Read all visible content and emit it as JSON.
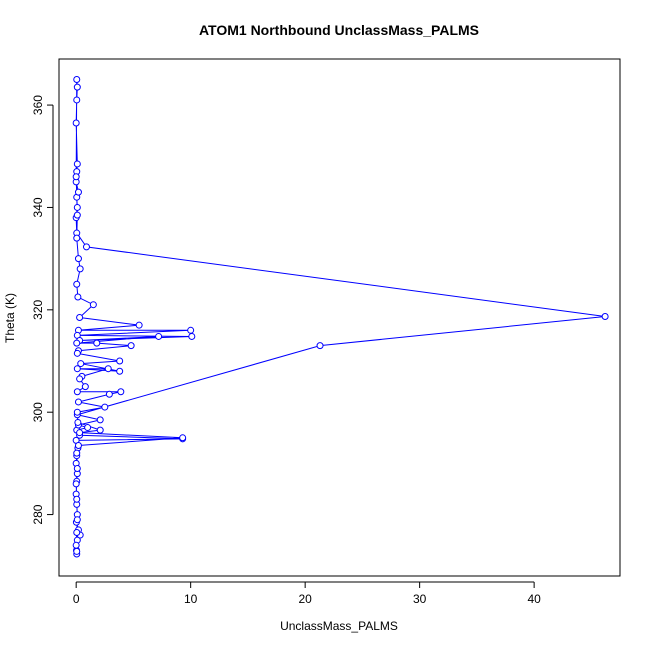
{
  "chart_data": {
    "type": "line",
    "title": "ATOM1 Northbound UnclassMass_PALMS",
    "xlabel": "UnclassMass_PALMS",
    "ylabel": "Theta (K)",
    "xlim": [
      -1.5,
      47.5
    ],
    "ylim": [
      268.0,
      369.0
    ],
    "xticks": [
      0,
      10,
      20,
      30,
      40
    ],
    "yticks": [
      280,
      300,
      320,
      340,
      360
    ],
    "grid": false,
    "legend": "none",
    "series": [
      {
        "color": "#0000ff",
        "marker": "open-circle",
        "points": [
          [
            0.05,
            272.3
          ],
          [
            0.03,
            273.0
          ],
          [
            0.1,
            275.0
          ],
          [
            0.35,
            276.0
          ],
          [
            0.2,
            277.0
          ],
          [
            0.02,
            278.5
          ],
          [
            0.1,
            280.0
          ],
          [
            0.05,
            282.0
          ],
          [
            0.0,
            284.0
          ],
          [
            0.05,
            286.5
          ],
          [
            0.1,
            288.0
          ],
          [
            0.0,
            290.0
          ],
          [
            0.05,
            291.5
          ],
          [
            0.15,
            293.0
          ],
          [
            0.0,
            294.5
          ],
          [
            9.3,
            294.8
          ],
          [
            0.3,
            295.5
          ],
          [
            0.05,
            296.5
          ],
          [
            1.0,
            297.0
          ],
          [
            0.2,
            297.5
          ],
          [
            2.1,
            298.5
          ],
          [
            0.1,
            299.5
          ],
          [
            21.3,
            313.0
          ],
          [
            46.2,
            318.7
          ],
          [
            0.9,
            332.3
          ],
          [
            0.05,
            335.0
          ],
          [
            0.0,
            338.0
          ],
          [
            0.1,
            340.0
          ],
          [
            0.05,
            342.0
          ],
          [
            0.2,
            343.0
          ],
          [
            0.0,
            345.0
          ],
          [
            0.05,
            347.0
          ],
          [
            0.1,
            348.5
          ],
          [
            0.0,
            356.5
          ],
          [
            0.05,
            361.0
          ],
          [
            0.1,
            363.5
          ],
          [
            0.05,
            365.0
          ],
          [
            0.0,
            346.0
          ],
          [
            0.1,
            338.5
          ],
          [
            0.05,
            334.0
          ],
          [
            0.2,
            330.0
          ],
          [
            0.35,
            328.0
          ],
          [
            0.05,
            325.0
          ],
          [
            0.15,
            322.5
          ],
          [
            1.5,
            321.0
          ],
          [
            0.3,
            318.5
          ],
          [
            5.5,
            317.0
          ],
          [
            0.2,
            316.0
          ],
          [
            10.0,
            316.0
          ],
          [
            0.1,
            315.0
          ],
          [
            10.1,
            314.8
          ],
          [
            0.3,
            314.0
          ],
          [
            7.2,
            314.8
          ],
          [
            0.05,
            313.5
          ],
          [
            1.8,
            313.5
          ],
          [
            4.8,
            313.0
          ],
          [
            0.2,
            312.0
          ],
          [
            0.1,
            311.5
          ],
          [
            3.8,
            310.0
          ],
          [
            0.4,
            309.5
          ],
          [
            3.8,
            308.0
          ],
          [
            0.1,
            308.5
          ],
          [
            2.8,
            308.5
          ],
          [
            0.5,
            307.0
          ],
          [
            0.3,
            306.5
          ],
          [
            0.8,
            305.0
          ],
          [
            0.1,
            304.0
          ],
          [
            3.9,
            304.0
          ],
          [
            2.9,
            303.5
          ],
          [
            0.2,
            302.0
          ],
          [
            2.5,
            301.0
          ],
          [
            0.1,
            300.0
          ],
          [
            0.15,
            298.0
          ],
          [
            2.1,
            296.5
          ],
          [
            0.3,
            296.0
          ],
          [
            9.3,
            295.0
          ],
          [
            0.2,
            293.5
          ],
          [
            0.05,
            292.0
          ],
          [
            0.1,
            289.0
          ],
          [
            0.0,
            286.0
          ],
          [
            0.05,
            283.0
          ],
          [
            0.1,
            279.0
          ],
          [
            0.05,
            276.5
          ],
          [
            0.0,
            274.0
          ],
          [
            0.05,
            272.8
          ]
        ]
      }
    ]
  }
}
